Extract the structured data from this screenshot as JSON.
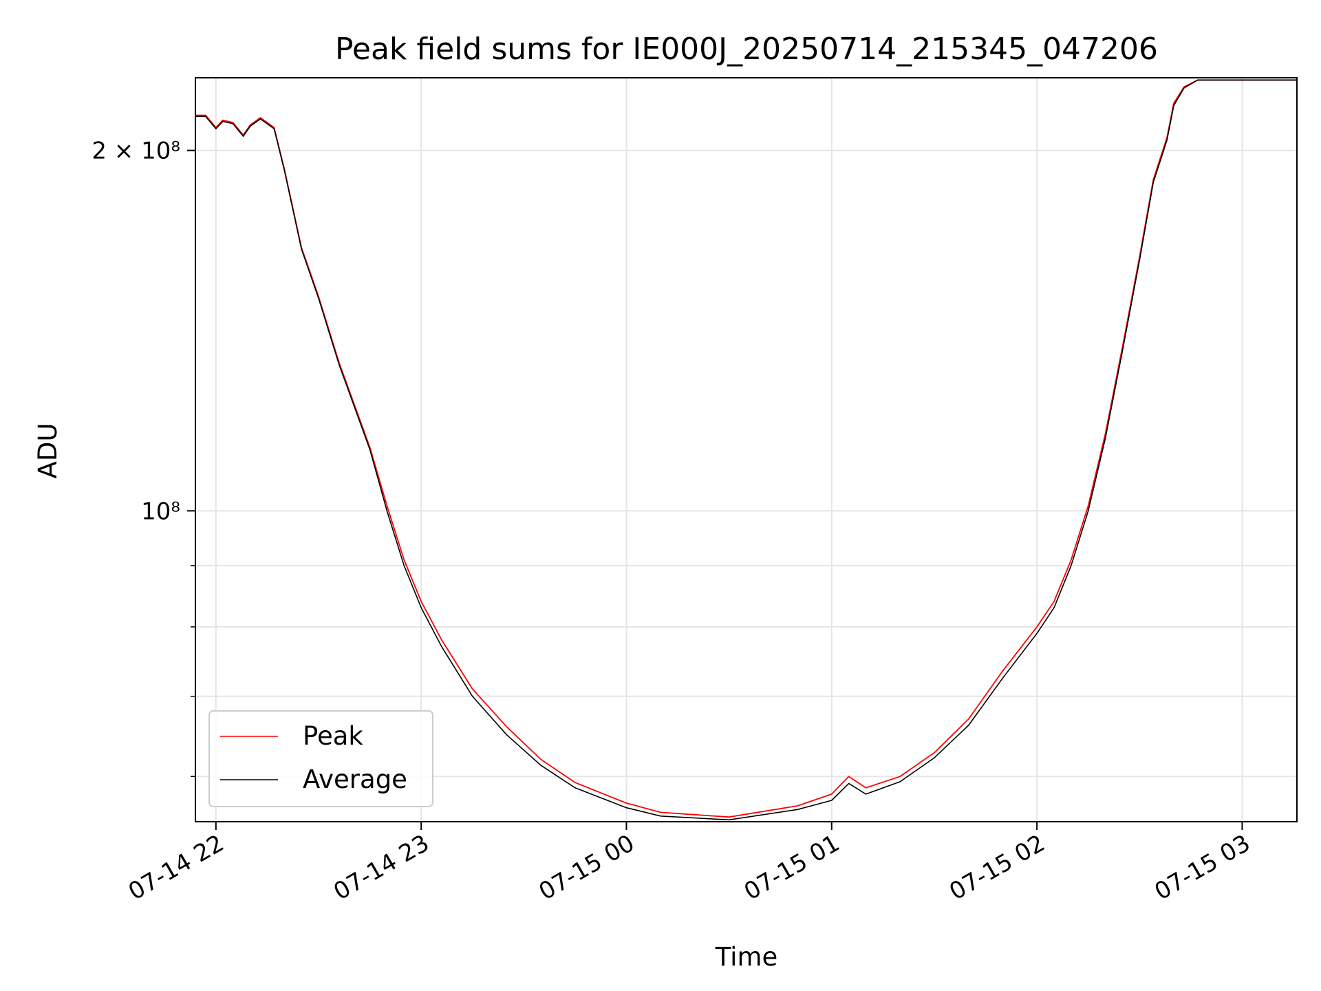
{
  "chart_data": {
    "type": "line",
    "title": "Peak field sums for IE000J_20250714_215345_047206",
    "xlabel": "Time",
    "ylabel": "ADU",
    "yscale": "log",
    "grid": true,
    "legend_position": "lower-left",
    "xlim": [
      "2025-07-14 21:54",
      "2025-07-15 03:16"
    ],
    "ylim": [
      55000000,
      230000000
    ],
    "x_ticks": [
      "07-14 22",
      "07-14 23",
      "07-15 00",
      "07-15 01",
      "07-15 02",
      "07-15 03"
    ],
    "y_ticks": [
      {
        "value": 200000000,
        "label": "2 × 10⁸"
      },
      {
        "value": 100000000,
        "label": "10⁸"
      }
    ],
    "y_minor_ticks": [
      60000000,
      70000000,
      80000000,
      90000000
    ],
    "series": [
      {
        "name": "Peak",
        "color": "#ff0000",
        "points": [
          [
            "2025-07-14 21:54",
            214000000
          ],
          [
            "2025-07-14 21:57",
            214000000
          ],
          [
            "2025-07-14 22:00",
            209000000
          ],
          [
            "2025-07-14 22:02",
            212000000
          ],
          [
            "2025-07-14 22:05",
            211000000
          ],
          [
            "2025-07-14 22:08",
            206000000
          ],
          [
            "2025-07-14 22:10",
            210000000
          ],
          [
            "2025-07-14 22:13",
            213000000
          ],
          [
            "2025-07-14 22:17",
            209000000
          ],
          [
            "2025-07-14 22:20",
            193000000
          ],
          [
            "2025-07-14 22:25",
            166000000
          ],
          [
            "2025-07-14 22:30",
            151000000
          ],
          [
            "2025-07-14 22:36",
            133000000
          ],
          [
            "2025-07-14 22:45",
            113000000
          ],
          [
            "2025-07-14 22:50",
            101000000
          ],
          [
            "2025-07-14 22:55",
            91000000
          ],
          [
            "2025-07-14 23:00",
            84000000
          ],
          [
            "2025-07-14 23:06",
            78000000
          ],
          [
            "2025-07-14 23:15",
            71000000
          ],
          [
            "2025-07-14 23:25",
            66000000
          ],
          [
            "2025-07-14 23:35",
            62000000
          ],
          [
            "2025-07-14 23:45",
            59300000
          ],
          [
            "2025-07-15 00:00",
            57000000
          ],
          [
            "2025-07-15 00:10",
            56000000
          ],
          [
            "2025-07-15 00:30",
            55500000
          ],
          [
            "2025-07-15 00:50",
            56700000
          ],
          [
            "2025-07-15 01:00",
            58000000
          ],
          [
            "2025-07-15 01:05",
            60000000
          ],
          [
            "2025-07-15 01:10",
            58700000
          ],
          [
            "2025-07-15 01:20",
            60000000
          ],
          [
            "2025-07-15 01:30",
            62800000
          ],
          [
            "2025-07-15 01:40",
            67000000
          ],
          [
            "2025-07-15 01:50",
            73500000
          ],
          [
            "2025-07-15 02:00",
            80000000
          ],
          [
            "2025-07-15 02:05",
            84000000
          ],
          [
            "2025-07-15 02:10",
            91000000
          ],
          [
            "2025-07-15 02:15",
            101000000
          ],
          [
            "2025-07-15 02:20",
            116000000
          ],
          [
            "2025-07-15 02:25",
            137000000
          ],
          [
            "2025-07-15 02:30",
            163000000
          ],
          [
            "2025-07-15 02:34",
            189000000
          ],
          [
            "2025-07-15 02:38",
            205000000
          ],
          [
            "2025-07-15 02:40",
            219000000
          ],
          [
            "2025-07-15 02:43",
            226000000
          ],
          [
            "2025-07-15 02:47",
            229000000
          ],
          [
            "2025-07-15 03:16",
            229000000
          ]
        ]
      },
      {
        "name": "Average",
        "color": "#000000",
        "points": [
          [
            "2025-07-14 21:54",
            213500000
          ],
          [
            "2025-07-14 21:57",
            213500000
          ],
          [
            "2025-07-14 22:00",
            208500000
          ],
          [
            "2025-07-14 22:02",
            211500000
          ],
          [
            "2025-07-14 22:05",
            210500000
          ],
          [
            "2025-07-14 22:08",
            205500000
          ],
          [
            "2025-07-14 22:10",
            209500000
          ],
          [
            "2025-07-14 22:13",
            212500000
          ],
          [
            "2025-07-14 22:17",
            208500000
          ],
          [
            "2025-07-14 22:20",
            192500000
          ],
          [
            "2025-07-14 22:25",
            165500000
          ],
          [
            "2025-07-14 22:30",
            150500000
          ],
          [
            "2025-07-14 22:36",
            132500000
          ],
          [
            "2025-07-14 22:45",
            112500000
          ],
          [
            "2025-07-14 22:50",
            100000000
          ],
          [
            "2025-07-14 22:55",
            90000000
          ],
          [
            "2025-07-14 23:00",
            83000000
          ],
          [
            "2025-07-14 23:06",
            77000000
          ],
          [
            "2025-07-14 23:15",
            70000000
          ],
          [
            "2025-07-14 23:25",
            65000000
          ],
          [
            "2025-07-14 23:35",
            61300000
          ],
          [
            "2025-07-14 23:45",
            58700000
          ],
          [
            "2025-07-15 00:00",
            56500000
          ],
          [
            "2025-07-15 00:10",
            55600000
          ],
          [
            "2025-07-15 00:30",
            55200000
          ],
          [
            "2025-07-15 00:50",
            56300000
          ],
          [
            "2025-07-15 01:00",
            57300000
          ],
          [
            "2025-07-15 01:05",
            59200000
          ],
          [
            "2025-07-15 01:10",
            58000000
          ],
          [
            "2025-07-15 01:20",
            59400000
          ],
          [
            "2025-07-15 01:30",
            62200000
          ],
          [
            "2025-07-15 01:40",
            66200000
          ],
          [
            "2025-07-15 01:50",
            72500000
          ],
          [
            "2025-07-15 02:00",
            79000000
          ],
          [
            "2025-07-15 02:05",
            83000000
          ],
          [
            "2025-07-15 02:10",
            90000000
          ],
          [
            "2025-07-15 02:15",
            100000000
          ],
          [
            "2025-07-15 02:20",
            115000000
          ],
          [
            "2025-07-15 02:25",
            136000000
          ],
          [
            "2025-07-15 02:30",
            162000000
          ],
          [
            "2025-07-15 02:34",
            188000000
          ],
          [
            "2025-07-15 02:38",
            204000000
          ],
          [
            "2025-07-15 02:40",
            218000000
          ],
          [
            "2025-07-15 02:43",
            225500000
          ],
          [
            "2025-07-15 02:47",
            229000000
          ],
          [
            "2025-07-15 03:16",
            229000000
          ]
        ]
      }
    ]
  }
}
